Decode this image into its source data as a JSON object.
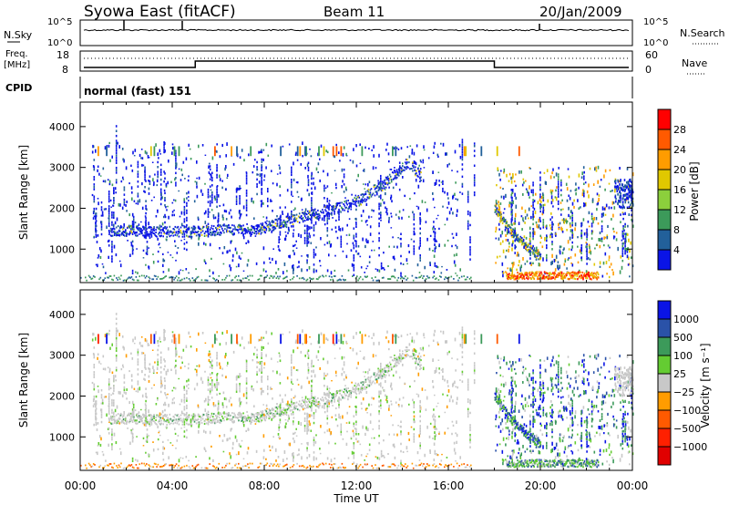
{
  "header": {
    "title": "Syowa East (fitACF)",
    "beam": "Beam 11",
    "date": "20/Jan/2009"
  },
  "info_panels": {
    "nsky_label": "N.Sky",
    "nsearch_label": "N.Search",
    "nsky_ticks": [
      "10^5",
      "10^0"
    ],
    "nsearch_ticks": [
      "10^5",
      "10^0"
    ],
    "freq_label": "Freq.",
    "freq_unit": "[MHz]",
    "freq_ticks": [
      "18",
      "8"
    ],
    "nave_label": "Nave",
    "nave_ticks": [
      "60",
      "0"
    ],
    "cpid_label": "CPID",
    "cpid_text": "normal (fast) 151"
  },
  "chart_data": [
    {
      "type": "heatmap",
      "name": "power",
      "ylabel": "Slant Range [km]",
      "xlabel": "",
      "x_ticks": [
        "00:00",
        "04:00",
        "08:00",
        "12:00",
        "16:00",
        "20:00",
        "00:00"
      ],
      "y_ticks": [
        1000,
        2000,
        3000,
        4000
      ],
      "ylim": [
        180,
        4600
      ],
      "xlim_hours": [
        0,
        24
      ],
      "colorbar": {
        "label": "Power [dB]",
        "ticks": [
          "28",
          "24",
          "20",
          "16",
          "12",
          "8",
          "4"
        ],
        "colors": [
          "#ff0000",
          "#ff5a00",
          "#ff9c00",
          "#e0c800",
          "#8ccf3c",
          "#3c9a5a",
          "#22609a",
          "#0a14e6"
        ]
      },
      "features": [
        {
          "desc": "track",
          "x_hours": [
            1.3,
            4.5,
            7.8,
            10.5,
            12.0,
            13.2,
            14.2,
            14.8
          ],
          "y_km": [
            1450,
            1420,
            1500,
            1900,
            2150,
            2600,
            3100,
            2800
          ]
        },
        {
          "desc": "decay",
          "x_hours": [
            18.0,
            18.6,
            19.3,
            20.0
          ],
          "y_km": [
            2000,
            1500,
            1100,
            800
          ]
        },
        {
          "desc": "ground",
          "x_hours": [
            18.5,
            22.5
          ],
          "y_km": [
            300,
            300
          ]
        }
      ]
    },
    {
      "type": "heatmap",
      "name": "velocity",
      "ylabel": "Slant Range [km]",
      "xlabel": "Time UT",
      "x_ticks": [
        "00:00",
        "04:00",
        "08:00",
        "12:00",
        "16:00",
        "20:00",
        "00:00"
      ],
      "y_ticks": [
        1000,
        2000,
        3000,
        4000
      ],
      "ylim": [
        180,
        4600
      ],
      "xlim_hours": [
        0,
        24
      ],
      "colorbar": {
        "label": "Velocity [m s⁻¹]",
        "ticks": [
          "1000",
          "500",
          "100",
          "25",
          "−25",
          "−100",
          "−500",
          "−1000"
        ],
        "colors": [
          "#0a14e6",
          "#2a52a8",
          "#3c9a5a",
          "#64cc32",
          "#c8c8c8",
          "#ff9c00",
          "#ff5a00",
          "#ff2000",
          "#e00000"
        ]
      }
    }
  ]
}
